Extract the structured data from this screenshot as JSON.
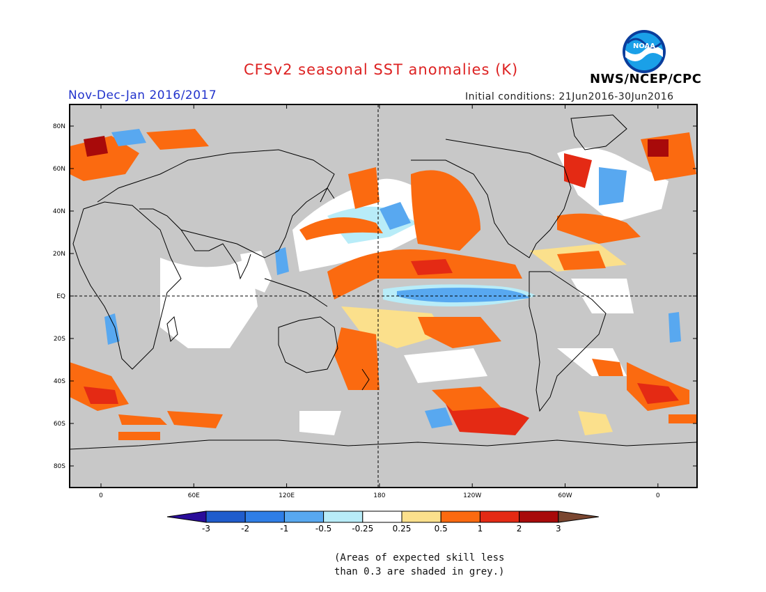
{
  "header": {
    "title": "CFSv2 seasonal SST anomalies (K)",
    "subtitle": "Nov-Dec-Jan 2016/2017",
    "initial_conditions": "Initial conditions: 21Jun2016-30Jun2016",
    "org": "NWS/NCEP/CPC",
    "logo_text": "NOAA"
  },
  "map": {
    "lat_labels": [
      "80N",
      "60N",
      "40N",
      "20N",
      "EQ",
      "20S",
      "40S",
      "60S",
      "80S"
    ],
    "lon_labels": [
      "0",
      "60E",
      "120E",
      "180",
      "120W",
      "60W",
      "0"
    ],
    "colors": {
      "land": "#c8c8c8",
      "frame": "#000000"
    }
  },
  "colorbar": {
    "labels": [
      "-3",
      "-2",
      "-1",
      "-0.5",
      "-0.25",
      "0.25",
      "0.5",
      "1",
      "2",
      "3"
    ],
    "colors": [
      "#2a0d9a",
      "#1f5ccc",
      "#2f7ee6",
      "#58a8f0",
      "#b8ecf8",
      "#ffffff",
      "#fbe08c",
      "#fb6a10",
      "#e42a14",
      "#a80a0a",
      "#7a4630"
    ]
  },
  "footnote": {
    "line1": "(Areas of expected skill less",
    "line2": "than 0.3 are shaded in grey.)"
  }
}
